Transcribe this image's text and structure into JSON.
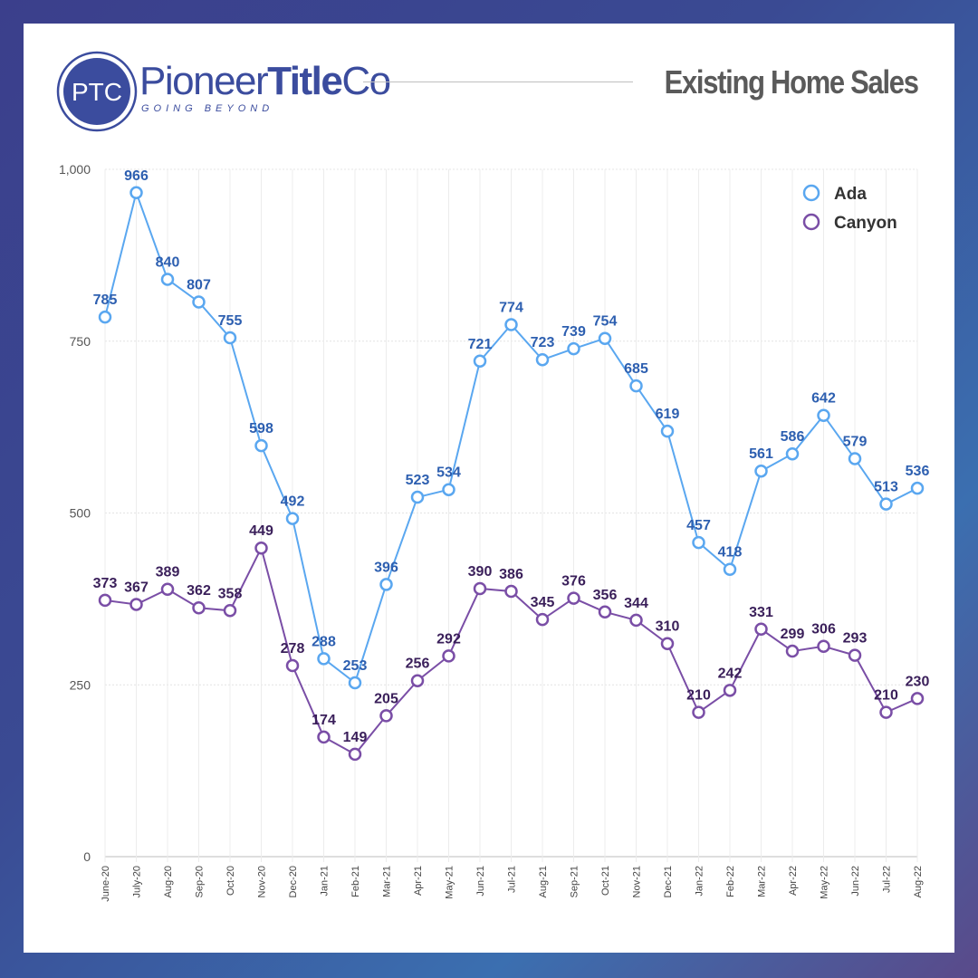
{
  "header": {
    "logo_monogram": "PTC",
    "brand_regular": "Pioneer",
    "brand_bold": "Title",
    "brand_suffix": "Co",
    "tagline": "GOING BEYOND",
    "title": "Existing Home Sales"
  },
  "colors": {
    "ada": "#5aa7f0",
    "ada_label": "#2d5fb0",
    "canyon": "#7a4ea6",
    "canyon_label": "#3a1f5a",
    "brand": "#3b4c9e"
  },
  "chart_data": {
    "type": "line",
    "title": "Existing Home Sales",
    "categories": [
      "June-20",
      "July-20",
      "Aug-20",
      "Sep-20",
      "Oct-20",
      "Nov-20",
      "Dec-20",
      "Jan-21",
      "Feb-21",
      "Mar-21",
      "Apr-21",
      "May-21",
      "Jun-21",
      "Jul-21",
      "Aug-21",
      "Sep-21",
      "Oct-21",
      "Nov-21",
      "Dec-21",
      "Jan-22",
      "Feb-22",
      "Mar-22",
      "Apr-22",
      "May-22",
      "Jun-22",
      "Jul-22",
      "Aug-22"
    ],
    "series": [
      {
        "name": "Ada",
        "values": [
          785,
          966,
          840,
          807,
          755,
          598,
          492,
          288,
          253,
          396,
          523,
          534,
          721,
          774,
          723,
          739,
          754,
          685,
          619,
          457,
          418,
          561,
          586,
          642,
          579,
          513,
          536
        ]
      },
      {
        "name": "Canyon",
        "values": [
          373,
          367,
          389,
          362,
          358,
          449,
          278,
          174,
          149,
          205,
          256,
          292,
          390,
          386,
          345,
          376,
          356,
          344,
          310,
          210,
          242,
          331,
          299,
          306,
          293,
          210,
          230
        ]
      }
    ],
    "ylim": [
      0,
      1000
    ],
    "yticks": [
      0,
      250,
      500,
      750,
      1000
    ],
    "ytick_labels": [
      "0",
      "250",
      "500",
      "750",
      "1,000"
    ],
    "xlabel": "",
    "ylabel": "",
    "legend_position": "top-right",
    "grid": true
  }
}
